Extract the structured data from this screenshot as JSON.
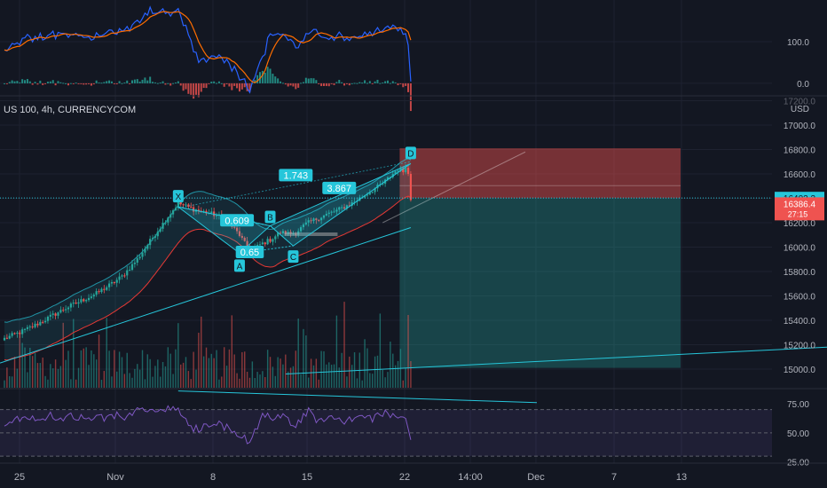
{
  "symbol_title": "US 100, 4h, CURRENCYCOM",
  "currency": "USD",
  "colors": {
    "background": "#131722",
    "up": "#26a69a",
    "down": "#ef5350",
    "pattern": "#26c6da",
    "rsi": "#7e57c2",
    "grid": "#1e2230",
    "text": "#b2b5be",
    "macd_line": "#2962ff",
    "signal_line": "#ff6d00",
    "band": "#e53935"
  },
  "chart_data": [
    {
      "type": "macd",
      "y_ticks": [
        "100.0",
        "0.0"
      ],
      "y_tick_values": [
        100,
        0
      ],
      "ylim": [
        -30,
        200
      ]
    },
    {
      "type": "candlestick",
      "timeframe": "4h",
      "y_unit": "USD",
      "ylim": [
        14840,
        17240
      ],
      "y_ticks": [
        "17200.0",
        "17000.0",
        "16800.0",
        "16600.0",
        "16400.0",
        "16200.0",
        "16000.0",
        "15800.0",
        "15600.0",
        "15400.0",
        "15200.0",
        "15000.0"
      ],
      "y_tick_values": [
        17200,
        17000,
        16800,
        16600,
        16400,
        16200,
        16000,
        15800,
        15600,
        15400,
        15200,
        15000
      ],
      "x_ticks": [
        "25",
        "Nov",
        "8",
        "15",
        "22",
        "14:00",
        "Dec",
        "7",
        "13"
      ],
      "last_price": "16386.4",
      "countdown": "27:15",
      "crosshair_price": "16402.3",
      "last_price_value": 16386.4,
      "crosshair_value": 16402.3,
      "close_path": [
        [
          0,
          15250
        ],
        [
          6,
          15300
        ],
        [
          12,
          15360
        ],
        [
          18,
          15430
        ],
        [
          24,
          15500
        ],
        [
          30,
          15560
        ],
        [
          36,
          15620
        ],
        [
          42,
          15700
        ],
        [
          46,
          15760
        ],
        [
          52,
          15900
        ],
        [
          58,
          16080
        ],
        [
          64,
          16250
        ],
        [
          68,
          16360
        ],
        [
          74,
          16310
        ],
        [
          80,
          16280
        ],
        [
          86,
          16240
        ],
        [
          92,
          16100
        ],
        [
          96,
          15960
        ],
        [
          100,
          16020
        ],
        [
          104,
          16060
        ],
        [
          108,
          16120
        ],
        [
          112,
          16110
        ],
        [
          114,
          16120
        ],
        [
          118,
          16190
        ],
        [
          124,
          16250
        ],
        [
          130,
          16300
        ],
        [
          136,
          16360
        ],
        [
          142,
          16440
        ],
        [
          148,
          16520
        ],
        [
          152,
          16600
        ],
        [
          154,
          16640
        ],
        [
          156,
          16620
        ],
        [
          157,
          16650
        ],
        [
          159,
          16550
        ]
      ],
      "harmonic_pattern": {
        "points": [
          {
            "label": "X",
            "bar": 68,
            "price": 16330
          },
          {
            "label": "A",
            "bar": 92,
            "price": 15950
          },
          {
            "label": "B",
            "bar": 104,
            "price": 16175
          },
          {
            "label": "C",
            "bar": 113,
            "price": 16010
          },
          {
            "label": "D",
            "bar": 159,
            "price": 16685
          }
        ],
        "ratios": [
          {
            "label": "0.609",
            "bar": 91,
            "price": 16220
          },
          {
            "label": "0.65",
            "bar": 96,
            "price": 15960
          },
          {
            "label": "1.743",
            "bar": 114,
            "price": 16590
          },
          {
            "label": "3.867",
            "bar": 131,
            "price": 16485
          }
        ]
      },
      "short_position": {
        "entry": 16402,
        "stop": 16810,
        "target": 15010,
        "start_bar": 155,
        "end_bar": 265
      }
    },
    {
      "type": "rsi",
      "y_ticks": [
        "75.00",
        "50.00",
        "25.00"
      ],
      "y_tick_values": [
        75,
        50,
        25
      ],
      "ylim": [
        24,
        88
      ]
    }
  ]
}
